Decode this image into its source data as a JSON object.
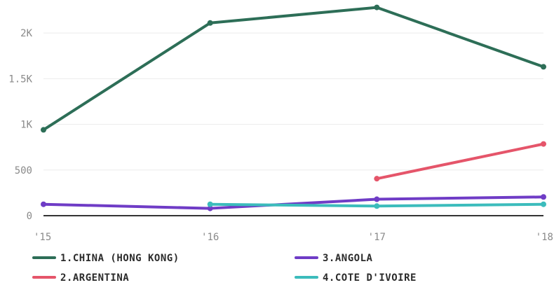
{
  "chart_data": {
    "type": "line",
    "x": [
      "'15",
      "'16",
      "'17",
      "'18"
    ],
    "y_ticks": [
      {
        "value": 0,
        "label": "0"
      },
      {
        "value": 500,
        "label": "500"
      },
      {
        "value": 1000,
        "label": "1K"
      },
      {
        "value": 1500,
        "label": "1.5K"
      },
      {
        "value": 2000,
        "label": "2K"
      }
    ],
    "ylim": [
      0,
      2300
    ],
    "grid": true,
    "legend_placement": "bottom",
    "series": [
      {
        "name": "1.CHINA (HONG KONG)",
        "color": "#2d6e57",
        "values": [
          940,
          2110,
          2280,
          1630
        ]
      },
      {
        "name": "2.ARGENTINA",
        "color": "#e5556a",
        "values": [
          null,
          null,
          405,
          785
        ]
      },
      {
        "name": "3.ANGOLA",
        "color": "#6f3cc6",
        "values": [
          125,
          80,
          180,
          205
        ]
      },
      {
        "name": "4.COTE D'IVOIRE",
        "color": "#3cbcbc",
        "values": [
          null,
          125,
          105,
          125
        ]
      }
    ]
  }
}
